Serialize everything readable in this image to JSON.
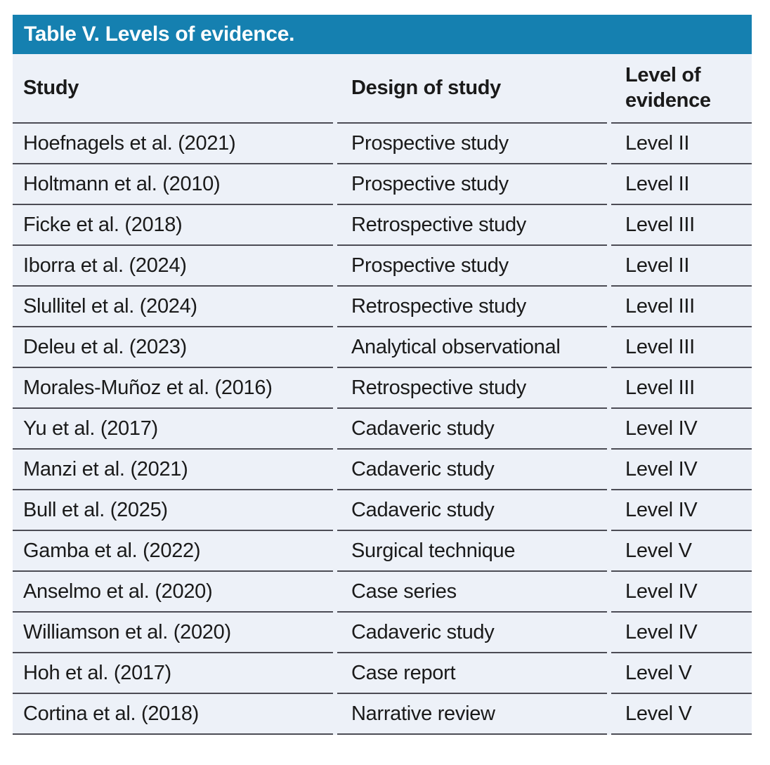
{
  "table": {
    "title": "Table V. Levels of evidence.",
    "columns": [
      "Study",
      "Design of study",
      "Level of evidence"
    ],
    "rows": [
      {
        "study": "Hoefnagels et al. (2021)",
        "design": "Prospective study",
        "level": "Level II"
      },
      {
        "study": "Holtmann et al. (2010)",
        "design": "Prospective study",
        "level": "Level II"
      },
      {
        "study": "Ficke et al. (2018)",
        "design": "Retrospective study",
        "level": "Level III"
      },
      {
        "study": "Iborra et al. (2024)",
        "design": "Prospective study",
        "level": "Level II"
      },
      {
        "study": "Slullitel et al. (2024)",
        "design": "Retrospective study",
        "level": "Level III"
      },
      {
        "study": "Deleu et al. (2023)",
        "design": "Analytical observational",
        "level": "Level III"
      },
      {
        "study": "Morales-Muñoz et al. (2016)",
        "design": "Retrospective study",
        "level": "Level III"
      },
      {
        "study": "Yu et al. (2017)",
        "design": "Cadaveric study",
        "level": "Level IV"
      },
      {
        "study": "Manzi et al. (2021)",
        "design": "Cadaveric study",
        "level": "Level IV"
      },
      {
        "study": "Bull et al. (2025)",
        "design": "Cadaveric study",
        "level": "Level IV"
      },
      {
        "study": "Gamba et al. (2022)",
        "design": "Surgical technique",
        "level": "Level V"
      },
      {
        "study": "Anselmo et al. (2020)",
        "design": "Case series",
        "level": "Level IV"
      },
      {
        "study": "Williamson et al. (2020)",
        "design": "Cadaveric study",
        "level": "Level IV"
      },
      {
        "study": "Hoh et al. (2017)",
        "design": "Case report",
        "level": "Level V"
      },
      {
        "study": "Cortina et al. (2018)",
        "design": "Narrative review",
        "level": "Level V"
      }
    ]
  },
  "colors": {
    "accent_blue": "#1580b0",
    "row_background": "#edf1f8",
    "divider": "#4c4c55",
    "text": "#1a1a1a",
    "title_text": "#ffffff"
  }
}
